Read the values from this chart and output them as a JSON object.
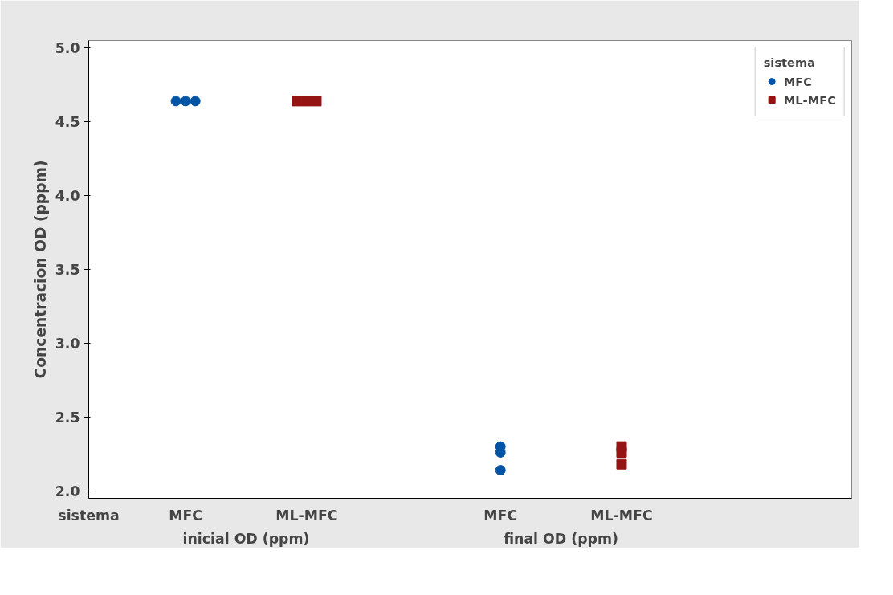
{
  "chart_data": {
    "type": "scatter",
    "ylabel": "Concentracion OD (pppm)",
    "legend_title": "sistema",
    "legend": "top right",
    "categories": [
      "MFC",
      "ML-MFC",
      "MFC",
      "ML-MFC"
    ],
    "series": [
      {
        "name": "MFC",
        "color": "#0054a6",
        "marker": "circle",
        "values": [
          4.64,
          null,
          2.3,
          null
        ]
      },
      {
        "color": "#0054a6",
        "marker": "circle",
        "values": [
          4.64,
          null,
          2.26,
          null
        ]
      },
      {
        "color": "#0054a6",
        "marker": "circle",
        "values": [
          4.64,
          null,
          2.14,
          null
        ]
      },
      {
        "name": "ML-MFC",
        "color": "#941414",
        "marker": "square",
        "values": [
          null,
          4.64,
          null,
          2.3
        ]
      },
      {
        "color": "#941414",
        "marker": "square",
        "values": [
          null,
          4.64,
          null,
          2.26
        ]
      },
      {
        "color": "#941414",
        "marker": "square",
        "values": [
          null,
          4.64,
          null,
          2.18
        ]
      }
    ],
    "ylim": [
      1.95,
      5.05
    ],
    "yticks": [
      {
        "value": 2,
        "label": "2.0"
      },
      2.5,
      {
        "value": 3,
        "label": "3.0"
      },
      3.5,
      {
        "value": 4,
        "label": "4.0"
      },
      4.5,
      {
        "value": 5,
        "label": "5.0"
      }
    ],
    "grid": false,
    "annotations": [
      "sistema",
      "inicial OD (ppm)",
      "final OD (ppm)"
    ]
  }
}
